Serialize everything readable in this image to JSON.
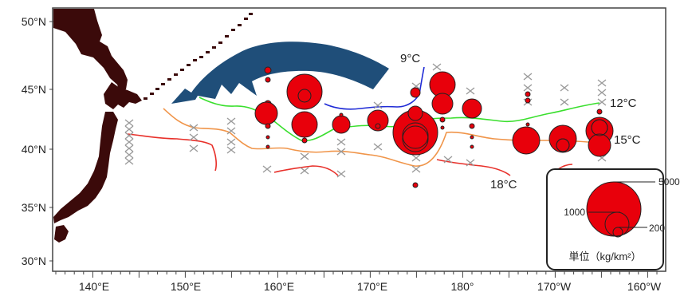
{
  "map": {
    "lat_labels": [
      "50°N",
      "45°N",
      "40°N",
      "35°N",
      "30°N"
    ],
    "lon_labels": [
      "140°E",
      "150°E",
      "160°E",
      "170°E",
      "180°",
      "170°W",
      "160°W"
    ],
    "isotherm_labels": {
      "t9": "9°C",
      "t12": "12°C",
      "t15": "15°C",
      "t18": "18°C"
    },
    "colors": {
      "land": "#3b0a0a",
      "current_arrow": "#1f4e79",
      "isotherm_9": "#1f2bd6",
      "isotherm_12": "#3adf2e",
      "isotherm_15": "#f0954a",
      "isotherm_18": "#e8302a",
      "circle_fill": "#e8000b",
      "no_catch_marker": "#9a9a9a"
    },
    "arrow_icon": "current-arrow-icon",
    "no_catch_icon": "cross-icon"
  },
  "legend": {
    "values": [
      "5000",
      "1000",
      "200"
    ],
    "unit": "単位（kg/km²）"
  }
}
